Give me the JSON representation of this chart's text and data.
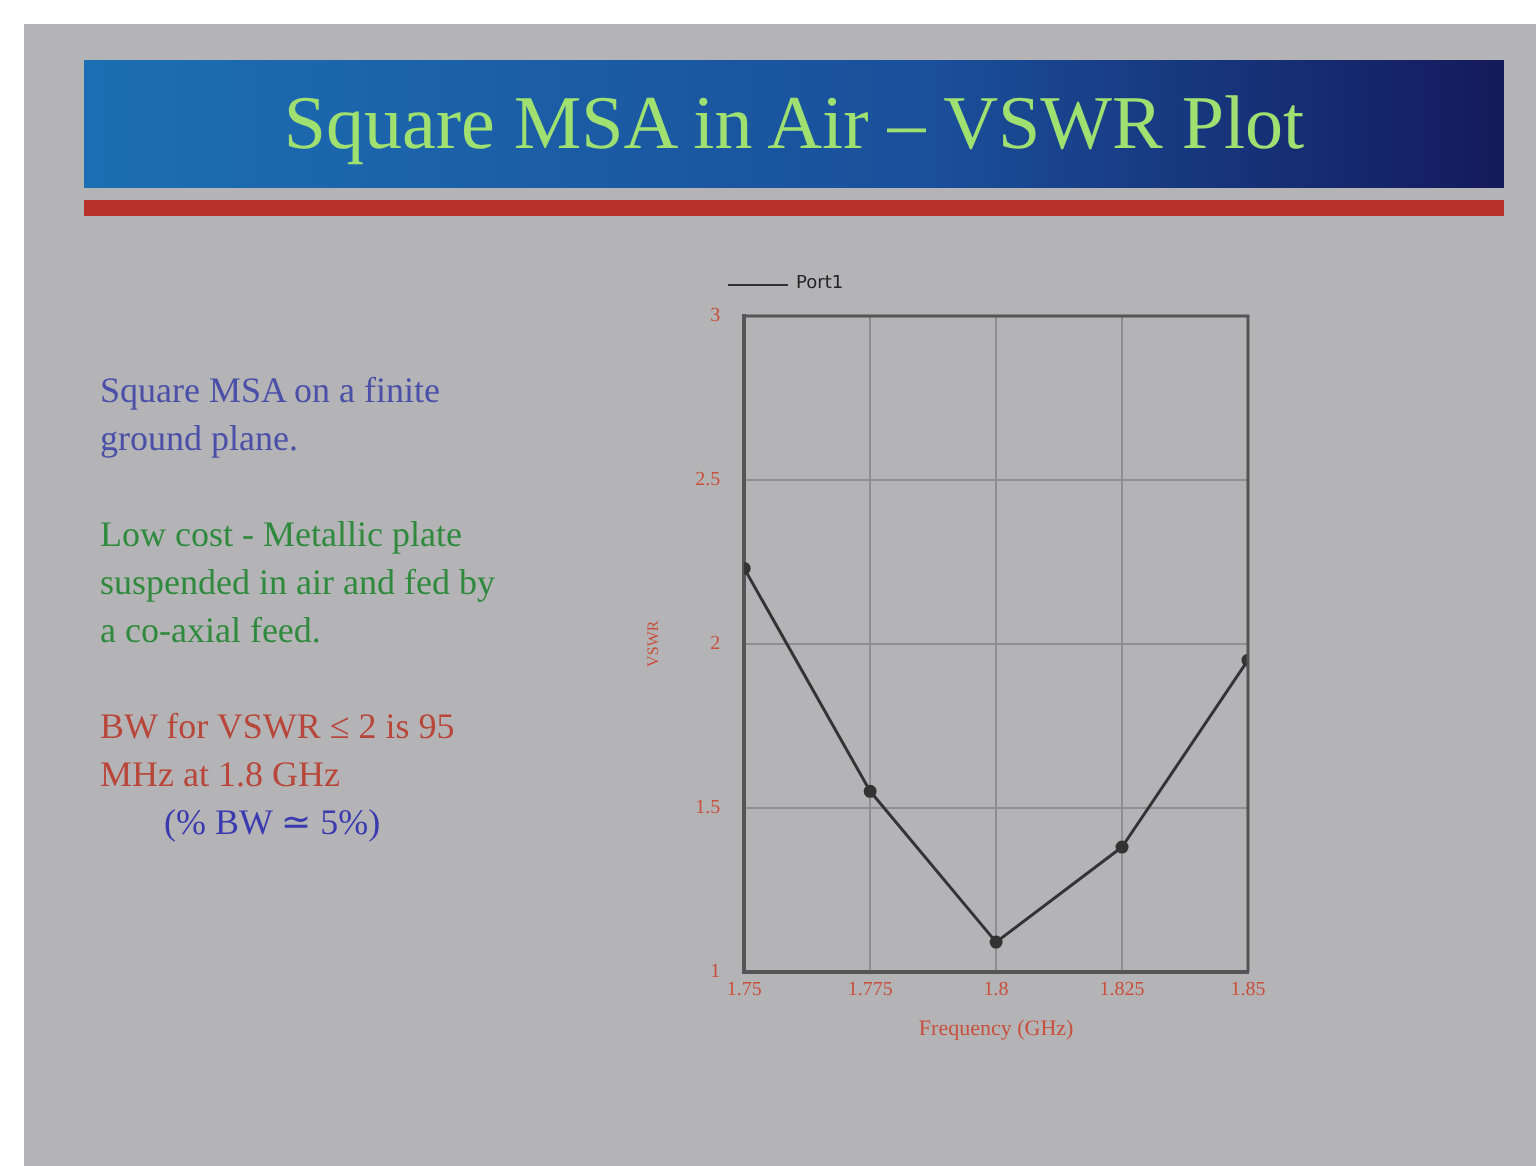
{
  "chart_data": {
    "type": "line",
    "title": "Square MSA in Air – VSWR Plot",
    "xlabel": "Frequency (GHz)",
    "ylabel": "VSWR",
    "annotations": [
      "Square MSA on a finite ground plane.",
      "Low cost - Metallic plate suspended in air and fed by a co-axial feed.",
      "BW for VSWR ≤ 2 is 95 MHz at 1.8 GHz",
      "(% BW ≃ 5%)"
    ],
    "x": [
      1.75,
      1.775,
      1.8,
      1.825,
      1.85
    ],
    "series": [
      {
        "name": "Port1",
        "color": "#333333",
        "values": [
          2.23,
          1.55,
          1.09,
          1.38,
          1.95
        ]
      }
    ],
    "xlim": [
      1.75,
      1.85
    ],
    "xticks": [
      1.75,
      1.775,
      1.8,
      1.825,
      1.85
    ],
    "ylim": [
      1,
      3
    ],
    "yticks": [
      1,
      1.5,
      2,
      2.5,
      3
    ],
    "grid": true,
    "legend": "top left",
    "marker": "circle",
    "line_style": "solid"
  }
}
